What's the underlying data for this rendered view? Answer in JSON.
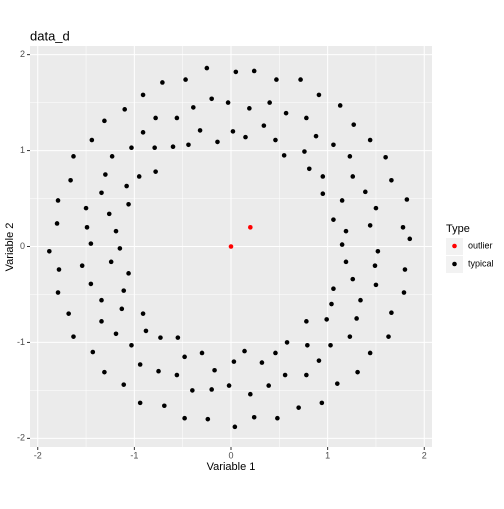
{
  "chart_data": {
    "type": "scatter",
    "title": "data_d",
    "x_label": "Variable 1",
    "y_label": "Variable 2",
    "legend_title": "Type",
    "legend_position": "right",
    "grid": true,
    "xlim": [
      -2.08,
      2.08
    ],
    "ylim": [
      -2.09,
      2.09
    ],
    "xticks": [
      -2,
      -1,
      0,
      1,
      2
    ],
    "yticks": [
      -2,
      -1,
      0,
      1,
      2
    ],
    "series": [
      {
        "name": "outlier",
        "color": "#ff0000",
        "x": [
          0,
          0.2
        ],
        "y": [
          0,
          0.2
        ]
      },
      {
        "name": "typical",
        "color": "#000000",
        "x": [
          1.15,
          1.52,
          1.85,
          1.19,
          1.44,
          1.78,
          1.06,
          1.5,
          1.82,
          1.15,
          1.39,
          1.66,
          0.95,
          1.26,
          1.6,
          0.95,
          1.23,
          1.44,
          0.81,
          1.06,
          1.27,
          0.76,
          0.88,
          1.13,
          0.55,
          0.78,
          0.91,
          0.46,
          0.57,
          0.72,
          0.34,
          0.4,
          0.47,
          0.15,
          0.19,
          0.24,
          0.02,
          -0.03,
          0.05,
          -0.14,
          -0.2,
          -0.25,
          -0.32,
          -0.39,
          -0.47,
          -0.44,
          -0.56,
          -0.71,
          -0.6,
          -0.78,
          -0.91,
          -0.79,
          -0.91,
          -1.1,
          -0.78,
          -1.03,
          -1.31,
          -0.95,
          -1.23,
          -1.44,
          -1.08,
          -1.3,
          -1.63,
          -1.06,
          -1.34,
          -1.66,
          -1.26,
          -1.5,
          -1.79,
          -1.19,
          -1.49,
          -1.8,
          -1.15,
          -1.45,
          -1.88,
          -1.24,
          -1.54,
          -1.78,
          -1.06,
          -1.45,
          -1.79,
          -1.11,
          -1.34,
          -1.68,
          -1.13,
          -1.34,
          -1.63,
          -0.91,
          -1.19,
          -1.43,
          -0.88,
          -1.03,
          -1.31,
          -0.73,
          -0.94,
          -1.11,
          -0.55,
          -0.75,
          -0.94,
          -0.48,
          -0.56,
          -0.69,
          -0.3,
          -0.4,
          -0.48,
          -0.17,
          -0.2,
          -0.24,
          0.03,
          -0.02,
          0.04,
          0.14,
          0.2,
          0.24,
          0.32,
          0.39,
          0.48,
          0.46,
          0.56,
          0.7,
          0.58,
          0.78,
          0.94,
          0.79,
          0.91,
          1.1,
          0.78,
          1.03,
          1.31,
          0.99,
          1.23,
          1.44,
          1.04,
          1.3,
          1.63,
          1.06,
          1.34,
          1.66,
          1.26,
          1.5,
          1.79,
          1.19,
          1.49,
          1.8
        ],
        "y": [
          0.02,
          -0.05,
          0.08,
          0.16,
          0.22,
          0.2,
          0.28,
          0.4,
          0.49,
          0.48,
          0.57,
          0.69,
          0.55,
          0.73,
          0.93,
          0.73,
          0.94,
          1.11,
          0.81,
          1.06,
          1.27,
          0.99,
          1.15,
          1.47,
          0.95,
          1.34,
          1.58,
          1.11,
          1.39,
          1.74,
          1.26,
          1.5,
          1.74,
          1.14,
          1.44,
          1.83,
          1.2,
          1.5,
          1.82,
          1.09,
          1.54,
          1.86,
          1.21,
          1.45,
          1.74,
          1.06,
          1.34,
          1.71,
          1.04,
          1.34,
          1.58,
          1.03,
          1.19,
          1.43,
          0.78,
          1.03,
          1.31,
          0.73,
          0.94,
          1.11,
          0.63,
          0.75,
          0.94,
          0.44,
          0.56,
          0.69,
          0.34,
          0.4,
          0.48,
          0.16,
          0.2,
          0.24,
          -0.02,
          0.03,
          -0.05,
          -0.16,
          -0.2,
          -0.24,
          -0.28,
          -0.39,
          -0.48,
          -0.46,
          -0.56,
          -0.7,
          -0.65,
          -0.78,
          -0.94,
          -0.7,
          -0.91,
          -1.1,
          -0.88,
          -1.03,
          -1.31,
          -0.95,
          -1.23,
          -1.44,
          -0.95,
          -1.3,
          -1.63,
          -1.15,
          -1.34,
          -1.66,
          -1.11,
          -1.5,
          -1.79,
          -1.29,
          -1.49,
          -1.8,
          -1.2,
          -1.45,
          -1.88,
          -1.09,
          -1.54,
          -1.78,
          -1.21,
          -1.45,
          -1.79,
          -1.11,
          -1.34,
          -1.68,
          -1.0,
          -1.34,
          -1.63,
          -1.03,
          -1.19,
          -1.43,
          -0.78,
          -1.03,
          -1.31,
          -0.76,
          -0.94,
          -1.11,
          -0.6,
          -0.75,
          -0.94,
          -0.44,
          -0.56,
          -0.69,
          -0.34,
          -0.4,
          -0.48,
          -0.16,
          -0.2,
          -0.24
        ]
      }
    ]
  }
}
